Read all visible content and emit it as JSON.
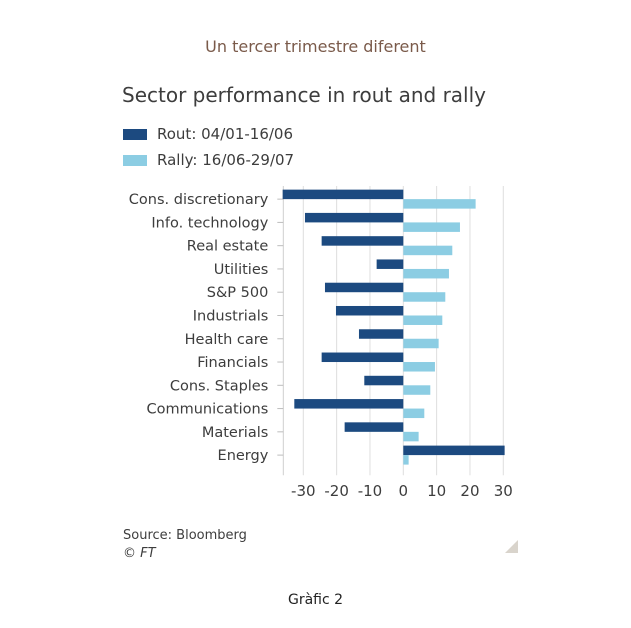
{
  "heading": "Un tercer trimestre diferent",
  "caption": "Gràfic 2",
  "footer": {
    "source": "Source: Bloomberg",
    "copyright": "© FT"
  },
  "colors": {
    "rout": "#1c4a80",
    "rally": "#8ccde3",
    "grid": "#dedede",
    "text": "#3d3d3d",
    "heading": "#7a5a4a"
  },
  "chart_data": {
    "type": "bar",
    "orientation": "horizontal",
    "title": "Sector performance in rout and rally",
    "xlabel": "",
    "ylabel": "",
    "xlim": [
      -36,
      30
    ],
    "xticks": [
      -30,
      -20,
      -10,
      0,
      10,
      20,
      30
    ],
    "xtick_labels": [
      "-30",
      "-20",
      "-10",
      "0",
      "10",
      "20",
      "30"
    ],
    "grid": true,
    "legend_position": "top-left",
    "categories": [
      "Cons. discretionary",
      "Info. technology",
      "Real estate",
      "Utilities",
      "S&P 500",
      "Industrials",
      "Health care",
      "Financials",
      "Cons. Staples",
      "Communications",
      "Materials",
      "Energy"
    ],
    "series": [
      {
        "name": "Rout: 04/01-16/06",
        "values": [
          -36.2,
          -29.5,
          -24.5,
          -8.0,
          -23.5,
          -20.2,
          -13.3,
          -24.5,
          -11.7,
          -32.7,
          -17.6,
          30.4
        ]
      },
      {
        "name": "Rally: 16/06-29/07",
        "values": [
          21.7,
          17.0,
          14.7,
          13.7,
          12.6,
          11.7,
          10.6,
          9.5,
          8.1,
          6.3,
          4.6,
          1.6
        ]
      }
    ]
  }
}
